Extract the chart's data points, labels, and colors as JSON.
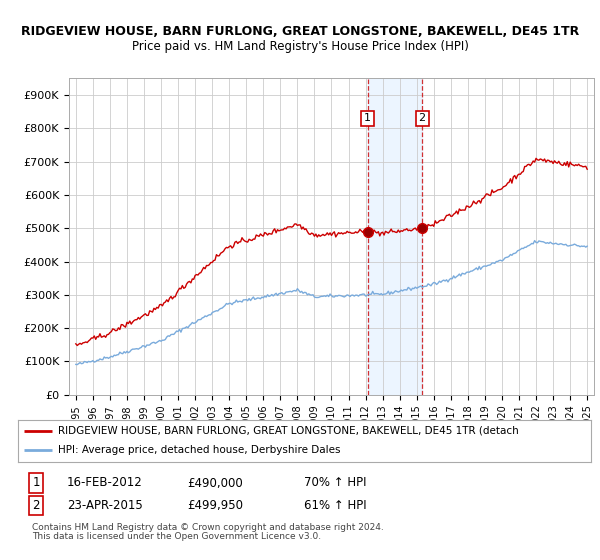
{
  "title": "RIDGEVIEW HOUSE, BARN FURLONG, GREAT LONGSTONE, BAKEWELL, DE45 1TR",
  "subtitle": "Price paid vs. HM Land Registry's House Price Index (HPI)",
  "ylabel_ticks": [
    "£0",
    "£100K",
    "£200K",
    "£300K",
    "£400K",
    "£500K",
    "£600K",
    "£700K",
    "£800K",
    "£900K"
  ],
  "ytick_values": [
    0,
    100000,
    200000,
    300000,
    400000,
    500000,
    600000,
    700000,
    800000,
    900000
  ],
  "ylim": [
    0,
    950000
  ],
  "hpi_color": "#7aabdc",
  "price_color": "#cc0000",
  "transaction1": {
    "date_label": "16-FEB-2012",
    "price": 490000,
    "price_str": "£490,000",
    "hpi_pct": "70% ↑ HPI",
    "x": 2012.12
  },
  "transaction2": {
    "date_label": "23-APR-2015",
    "price": 499950,
    "price_str": "£499,950",
    "hpi_pct": "61% ↑ HPI",
    "x": 2015.32
  },
  "legend_house": "RIDGEVIEW HOUSE, BARN FURLONG, GREAT LONGSTONE, BAKEWELL, DE45 1TR (detach",
  "legend_hpi": "HPI: Average price, detached house, Derbyshire Dales",
  "footnote1": "Contains HM Land Registry data © Crown copyright and database right 2024.",
  "footnote2": "This data is licensed under the Open Government Licence v3.0.",
  "xstart": 1995,
  "xend": 2025,
  "background_color": "#ffffff",
  "grid_color": "#cccccc",
  "shade_color": "#ddeeff"
}
